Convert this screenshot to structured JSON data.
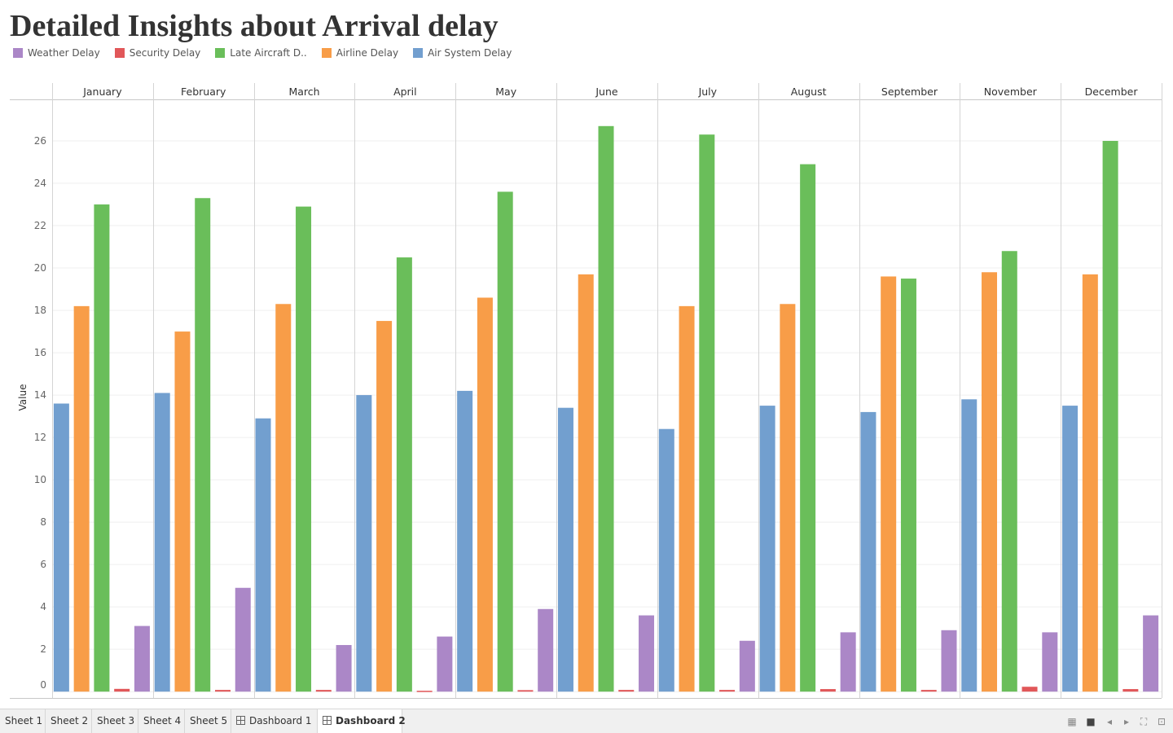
{
  "title": "Detailed Insights about Arrival delay",
  "legend": [
    {
      "label": "Weather Delay",
      "color": "#ab87c7"
    },
    {
      "label": "Security Delay",
      "color": "#e15759"
    },
    {
      "label": "Late Aircraft D..",
      "color": "#6abe5a"
    },
    {
      "label": "Airline Delay",
      "color": "#f89d48"
    },
    {
      "label": "Air System Delay",
      "color": "#729fcf"
    }
  ],
  "chart_data": {
    "type": "bar",
    "categories": [
      "January",
      "February",
      "March",
      "April",
      "May",
      "June",
      "July",
      "August",
      "September",
      "November",
      "December"
    ],
    "series": [
      {
        "name": "Air System Delay",
        "color": "#729fcf",
        "values": [
          13.6,
          14.1,
          12.9,
          14.0,
          14.2,
          13.4,
          12.4,
          13.5,
          13.2,
          13.8,
          13.5
        ]
      },
      {
        "name": "Airline Delay",
        "color": "#f89d48",
        "values": [
          18.2,
          17.0,
          18.3,
          17.5,
          18.6,
          19.7,
          18.2,
          18.3,
          19.6,
          19.8,
          19.7
        ]
      },
      {
        "name": "Late Aircraft D..",
        "color": "#6abe5a",
        "values": [
          23.0,
          23.3,
          22.9,
          20.5,
          23.6,
          26.7,
          26.3,
          24.9,
          19.5,
          20.8,
          26.0
        ]
      },
      {
        "name": "Security Delay",
        "color": "#e15759",
        "values": [
          0.13,
          0.08,
          0.08,
          0.04,
          0.07,
          0.08,
          0.08,
          0.12,
          0.08,
          0.23,
          0.12
        ]
      },
      {
        "name": "Weather Delay",
        "color": "#ab87c7",
        "values": [
          3.1,
          4.9,
          2.2,
          2.6,
          3.9,
          3.6,
          2.4,
          2.8,
          2.9,
          2.8,
          3.6
        ]
      }
    ],
    "ylabel": "Value",
    "yticks": [
      0,
      2,
      4,
      6,
      8,
      10,
      12,
      14,
      16,
      18,
      20,
      22,
      24,
      26
    ],
    "ylim": [
      -0.3,
      27.5
    ],
    "grid": true,
    "legend_position": "top-left"
  },
  "tabs": [
    {
      "label": "Sheet 1",
      "active": false,
      "dashboard": false
    },
    {
      "label": "Sheet 2",
      "active": false,
      "dashboard": false
    },
    {
      "label": "Sheet 3",
      "active": false,
      "dashboard": false
    },
    {
      "label": "Sheet 4",
      "active": false,
      "dashboard": false
    },
    {
      "label": "Sheet 5",
      "active": false,
      "dashboard": false
    },
    {
      "label": "Dashboard 1",
      "active": false,
      "dashboard": true
    },
    {
      "label": "Dashboard 2",
      "active": true,
      "dashboard": true
    }
  ],
  "controls": [
    "grid-view-icon",
    "filmstrip-view-icon",
    "previous-icon",
    "next-icon",
    "fullscreen-icon",
    "presentation-icon"
  ]
}
